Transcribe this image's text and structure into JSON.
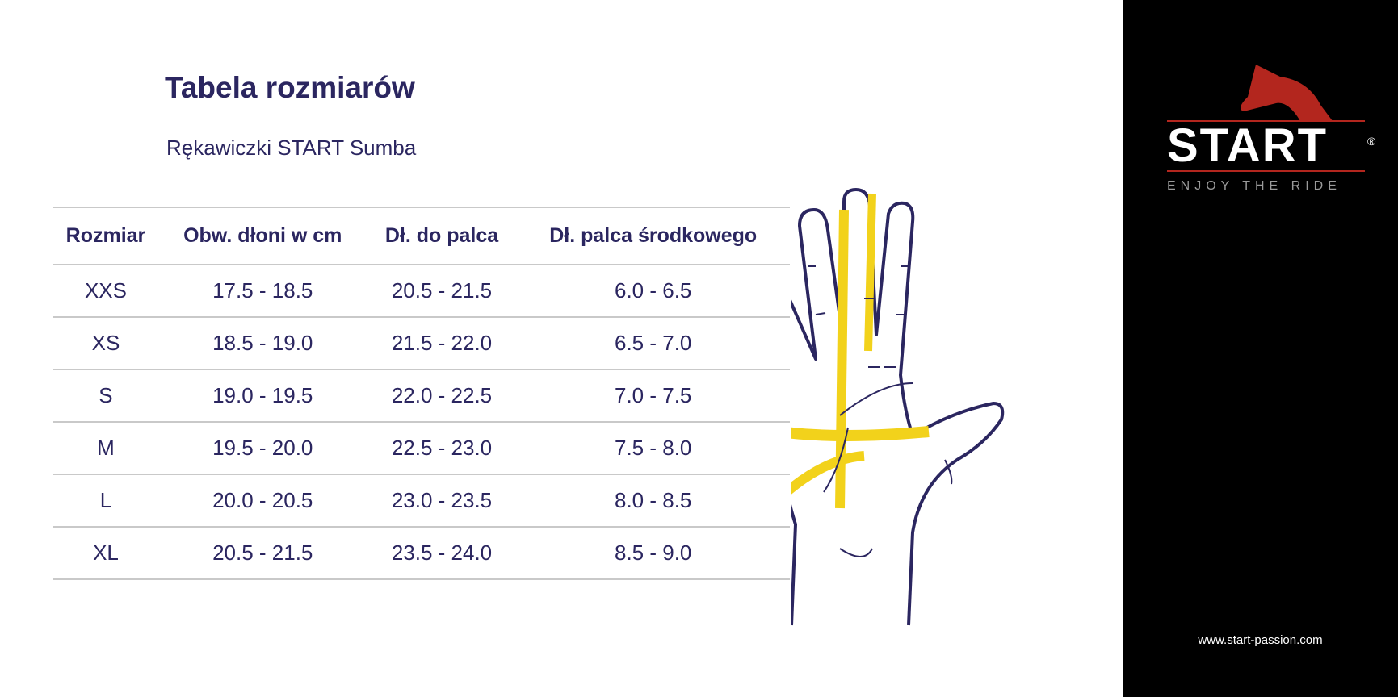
{
  "header": {
    "title": "Tabela rozmiarów",
    "subtitle": "Rękawiczki START Sumba"
  },
  "table": {
    "columns": [
      "Rozmiar",
      "Obw. dłoni w cm",
      "Dł. do palca",
      "Dł. palca środkowego"
    ],
    "rows": [
      [
        "XXS",
        "17.5 - 18.5",
        "20.5 - 21.5",
        "6.0 - 6.5"
      ],
      [
        "XS",
        "18.5 - 19.0",
        "21.5 - 22.0",
        "6.5 - 7.0"
      ],
      [
        "S",
        "19.0 - 19.5",
        "22.0 - 22.5",
        "7.0 - 7.5"
      ],
      [
        "M",
        "19.5 - 20.0",
        "22.5 - 23.0",
        "7.5 - 8.0"
      ],
      [
        "L",
        "20.0 - 20.5",
        "23.0 - 23.5",
        "8.0 - 8.5"
      ],
      [
        "XL",
        "20.5 - 21.5",
        "23.5 - 24.0",
        "8.5 - 9.0"
      ]
    ]
  },
  "brand": {
    "name": "START",
    "registered": "®",
    "tagline": "ENJOY THE RIDE",
    "url": "www.start-passion.com",
    "accent": "#b3261e"
  },
  "illustration": {
    "icon": "hand-measuring-tape-icon",
    "outline_color": "#2b2660",
    "tape_color": "#f2d21b"
  }
}
